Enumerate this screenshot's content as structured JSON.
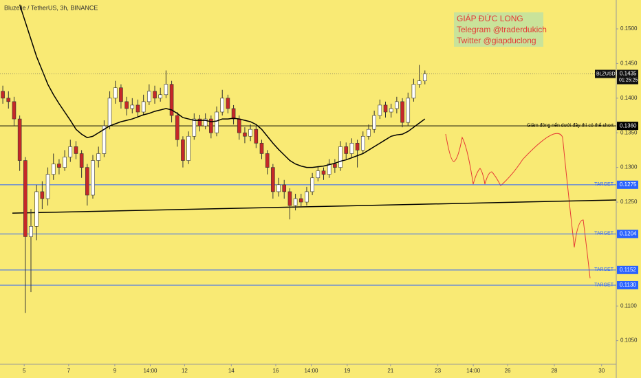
{
  "chart_data": {
    "type": "candlestick",
    "title": "Bluzelle / TetherUS, 3h, BINANCE",
    "watermark": [
      "GIÁP ĐỨC LONG",
      "Telegram @traderdukich",
      "Twitter @giapduclong"
    ],
    "xlim": [
      -0.5,
      109
    ],
    "ylim": [
      0.10159,
      0.15417
    ],
    "yticks": [
      {
        "value": 0.15,
        "label": "0.1500"
      },
      {
        "value": 0.145,
        "label": "0.1450"
      },
      {
        "value": 0.14,
        "label": "0.1400"
      },
      {
        "value": 0.135,
        "label": "0.1350"
      },
      {
        "value": 0.13,
        "label": "0.1300"
      },
      {
        "value": 0.125,
        "label": "0.1250"
      },
      {
        "value": 0.11,
        "label": "0.1100"
      },
      {
        "value": 0.105,
        "label": "0.1050"
      }
    ],
    "xticks": [
      {
        "value": 3.8,
        "label": "5"
      },
      {
        "value": 11.7,
        "label": "7"
      },
      {
        "value": 19.9,
        "label": "9"
      },
      {
        "value": 26.2,
        "label": "14:00"
      },
      {
        "value": 32.3,
        "label": "12"
      },
      {
        "value": 40.6,
        "label": "14"
      },
      {
        "value": 48.5,
        "label": "16"
      },
      {
        "value": 54.8,
        "label": "14:00"
      },
      {
        "value": 61.2,
        "label": "19"
      },
      {
        "value": 68.9,
        "label": "21"
      },
      {
        "value": 77.3,
        "label": "23"
      },
      {
        "value": 83.6,
        "label": "14:00"
      },
      {
        "value": 89.7,
        "label": "26"
      },
      {
        "value": 98.0,
        "label": "28"
      },
      {
        "value": 106.4,
        "label": "30"
      }
    ],
    "up_color": "#ffffff",
    "down_color": "#c62828",
    "open": [
      0.141,
      0.14,
      0.1395,
      0.137,
      0.131,
      0.12,
      0.1215,
      0.1265,
      0.1255,
      0.129,
      0.1305,
      0.13,
      0.1315,
      0.133,
      0.132,
      0.13,
      0.126,
      0.131,
      0.132,
      0.136,
      0.14,
      0.1415,
      0.1395,
      0.1385,
      0.139,
      0.138,
      0.1395,
      0.141,
      0.14,
      0.1405,
      0.142,
      0.1375,
      0.134,
      0.131,
      0.1345,
      0.137,
      0.136,
      0.137,
      0.135,
      0.138,
      0.14,
      0.1385,
      0.137,
      0.135,
      0.1345,
      0.1355,
      0.1335,
      0.132,
      0.13,
      0.1265,
      0.1275,
      0.1265,
      0.1245,
      0.1255,
      0.125,
      0.1265,
      0.1285,
      0.1295,
      0.129,
      0.1305,
      0.13,
      0.133,
      0.132,
      0.1335,
      0.1325,
      0.1345,
      0.1355,
      0.1375,
      0.139,
      0.138,
      0.1385,
      0.1395,
      0.1365,
      0.14,
      0.142,
      0.1425
    ],
    "high": [
      0.1418,
      0.141,
      0.1402,
      0.1375,
      0.1315,
      0.124,
      0.1275,
      0.128,
      0.13,
      0.132,
      0.1312,
      0.1325,
      0.134,
      0.1338,
      0.1325,
      0.1305,
      0.1318,
      0.133,
      0.1368,
      0.141,
      0.1425,
      0.142,
      0.1402,
      0.14,
      0.1398,
      0.1405,
      0.142,
      0.1418,
      0.1415,
      0.144,
      0.1425,
      0.138,
      0.1345,
      0.1352,
      0.1378,
      0.1376,
      0.1378,
      0.1375,
      0.1388,
      0.1412,
      0.1405,
      0.139,
      0.1375,
      0.1358,
      0.1362,
      0.136,
      0.134,
      0.1325,
      0.1305,
      0.1285,
      0.1282,
      0.127,
      0.1262,
      0.1262,
      0.1272,
      0.1292,
      0.1302,
      0.13,
      0.1312,
      0.1312,
      0.1338,
      0.1336,
      0.1342,
      0.134,
      0.1352,
      0.1362,
      0.1382,
      0.1398,
      0.1395,
      0.1392,
      0.1402,
      0.14,
      0.1408,
      0.1428,
      0.1448,
      0.144
    ],
    "low": [
      0.1392,
      0.1385,
      0.136,
      0.1295,
      0.109,
      0.112,
      0.1195,
      0.124,
      0.1245,
      0.1282,
      0.129,
      0.1295,
      0.1308,
      0.1312,
      0.1285,
      0.1245,
      0.1255,
      0.13,
      0.1315,
      0.1355,
      0.1392,
      0.1385,
      0.1375,
      0.1378,
      0.1372,
      0.1375,
      0.139,
      0.1392,
      0.1395,
      0.14,
      0.1365,
      0.133,
      0.13,
      0.1305,
      0.134,
      0.1352,
      0.1355,
      0.1342,
      0.1345,
      0.1375,
      0.1378,
      0.1362,
      0.134,
      0.1335,
      0.1338,
      0.1328,
      0.1312,
      0.129,
      0.1255,
      0.1258,
      0.1255,
      0.1225,
      0.1238,
      0.1242,
      0.1245,
      0.126,
      0.128,
      0.1282,
      0.1285,
      0.1292,
      0.1295,
      0.1312,
      0.1315,
      0.13,
      0.132,
      0.134,
      0.135,
      0.137,
      0.1372,
      0.1372,
      0.1378,
      0.1358,
      0.136,
      0.1395,
      0.1415,
      0.142
    ],
    "close": [
      0.14,
      0.1395,
      0.137,
      0.131,
      0.12,
      0.1215,
      0.1265,
      0.1255,
      0.129,
      0.1305,
      0.13,
      0.1315,
      0.133,
      0.132,
      0.13,
      0.126,
      0.131,
      0.132,
      0.136,
      0.14,
      0.1415,
      0.1395,
      0.1385,
      0.139,
      0.138,
      0.1395,
      0.141,
      0.14,
      0.1405,
      0.142,
      0.1375,
      0.134,
      0.131,
      0.1345,
      0.137,
      0.136,
      0.137,
      0.135,
      0.138,
      0.14,
      0.1385,
      0.137,
      0.135,
      0.1345,
      0.1355,
      0.1335,
      0.132,
      0.13,
      0.1265,
      0.1275,
      0.1265,
      0.1245,
      0.1255,
      0.125,
      0.1265,
      0.1285,
      0.1295,
      0.129,
      0.1305,
      0.13,
      0.133,
      0.132,
      0.1335,
      0.1325,
      0.1345,
      0.1355,
      0.1375,
      0.139,
      0.138,
      0.1385,
      0.1395,
      0.1365,
      0.14,
      0.142,
      0.1425,
      0.1435
    ],
    "ma": {
      "color": "#000000",
      "values": [
        null,
        null,
        null,
        0.1535,
        0.151,
        0.1485,
        0.146,
        0.144,
        0.142,
        0.1405,
        0.1392,
        0.138,
        0.1368,
        0.1355,
        0.1348,
        0.1343,
        0.1345,
        0.135,
        0.1355,
        0.136,
        0.1363,
        0.1366,
        0.1368,
        0.137,
        0.1373,
        0.1376,
        0.1378,
        0.1381,
        0.1383,
        0.1385,
        0.1383,
        0.1378,
        0.1372,
        0.137,
        0.1368,
        0.1368,
        0.1368,
        0.1366,
        0.1367,
        0.137,
        0.137,
        0.1371,
        0.137,
        0.1368,
        0.1366,
        0.1362,
        0.1355,
        0.1345,
        0.1335,
        0.1326,
        0.1318,
        0.131,
        0.1305,
        0.1302,
        0.13,
        0.13,
        0.1301,
        0.1302,
        0.1304,
        0.1306,
        0.1309,
        0.1311,
        0.1314,
        0.1317,
        0.132,
        0.1325,
        0.133,
        0.1335,
        0.134,
        0.1345,
        0.1347,
        0.1348,
        0.1352,
        0.1358,
        0.1364,
        0.137
      ]
    },
    "trendline": {
      "color": "#000000",
      "x": [
        1.7,
        109
      ],
      "y": [
        0.1234,
        0.1253
      ]
    },
    "levels": [
      {
        "price": {
          "value": 0.136,
          "label": "0.1360"
        },
        "text": "Giảm đóng nến dưới đây thì có thể short",
        "color": "#000000"
      },
      {
        "price": {
          "value": 0.1275,
          "label": "0.1275"
        },
        "text": "TARGET",
        "color": "#2962ff"
      },
      {
        "price": {
          "value": 0.1204,
          "label": "0.1204"
        },
        "text": "TARGET",
        "color": "#2962ff"
      },
      {
        "price": {
          "value": 0.1152,
          "label": "0.1152"
        },
        "text": "TARGET",
        "color": "#2962ff"
      },
      {
        "price": {
          "value": 0.113,
          "label": "0.1130"
        },
        "text": "TARGET",
        "color": "#2962ff"
      }
    ],
    "last": {
      "symbol": "BLZUSDT",
      "price": {
        "value": 0.1435,
        "label": "0.1435"
      },
      "countdown": "01:25:25"
    }
  }
}
